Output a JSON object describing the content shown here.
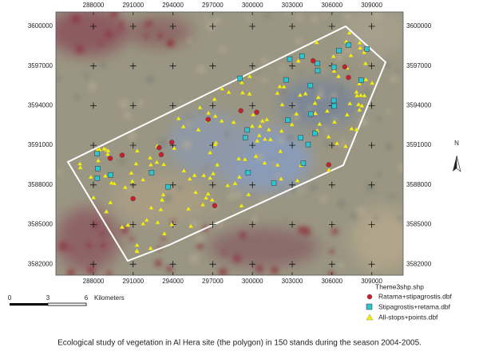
{
  "map": {
    "x_ticks": [
      288000,
      291000,
      294000,
      297000,
      300000,
      303000,
      306000,
      309000
    ],
    "y_ticks": [
      3600000,
      3597000,
      3594000,
      3591000,
      3588000,
      3585000,
      3582000
    ],
    "north": "N",
    "scale": {
      "zero": "0",
      "mid": "3",
      "end": "6",
      "unit": "Kilometers"
    },
    "legend": {
      "title": "Theme3shp.shp",
      "items": [
        "Ratama+stipagrostis.dbf",
        "Stipagrostis+retama.dbf",
        "All-stops+points.dbf"
      ]
    },
    "caption": "Ecological study of vegetation in Al Hera site (the polygon) in 150 stands during the season 2004-2005."
  }
}
